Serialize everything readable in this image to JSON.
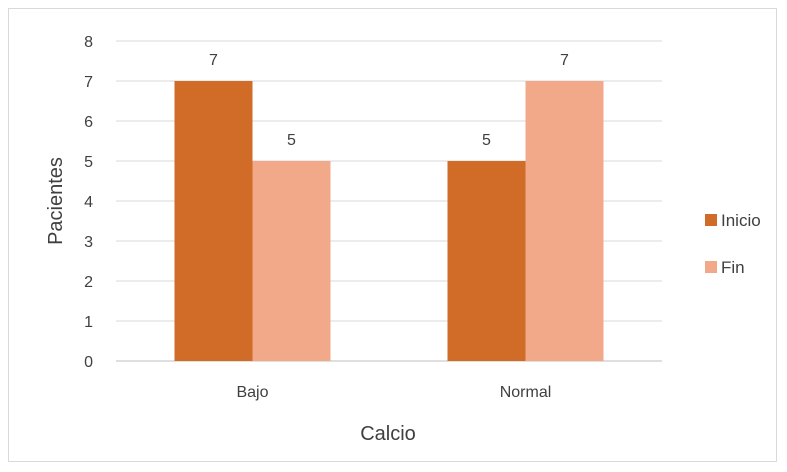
{
  "chart_data": {
    "type": "bar",
    "categories": [
      "Bajo",
      "Normal"
    ],
    "series": [
      {
        "name": "Inicio",
        "values": [
          7,
          5
        ],
        "color": "#D06B28"
      },
      {
        "name": "Fin",
        "values": [
          5,
          7
        ],
        "color": "#F2A98A"
      }
    ],
    "xlabel": "Calcio",
    "ylabel": "Pacientes",
    "ylim": [
      0,
      8
    ],
    "yticks": [
      0,
      1,
      2,
      3,
      4,
      5,
      6,
      7,
      8
    ],
    "grid": true,
    "legend_position": "right",
    "gridline_color": "#d9d9d9",
    "axis_line_color": "#bfbfbf"
  }
}
